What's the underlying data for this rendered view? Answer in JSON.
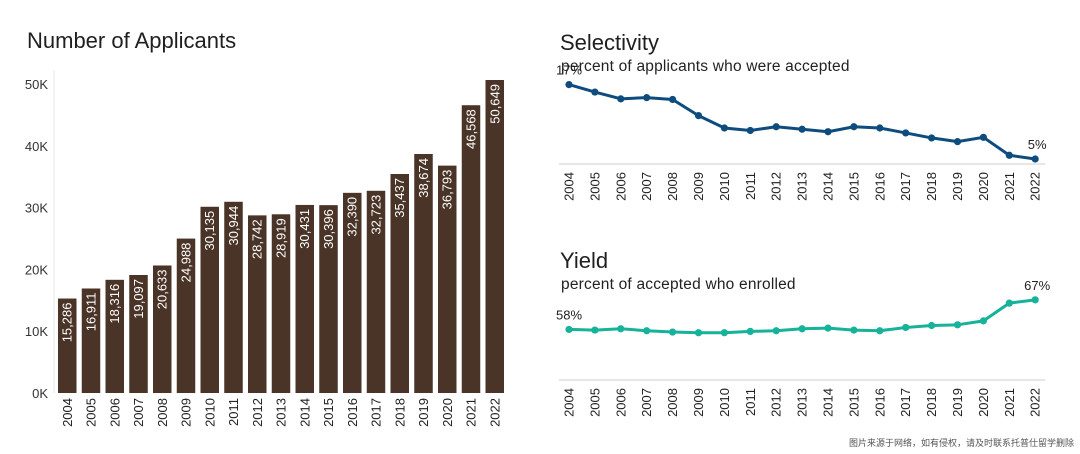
{
  "chart_data": [
    {
      "type": "bar",
      "title": "Number of Applicants",
      "xlabel": "",
      "ylabel": "",
      "ylim": [
        0,
        50649
      ],
      "yticks": [
        {
          "value": 0,
          "label": "0K"
        },
        {
          "value": 10000,
          "label": "10K"
        },
        {
          "value": 20000,
          "label": "20K"
        },
        {
          "value": 30000,
          "label": "30K"
        },
        {
          "value": 40000,
          "label": "40K"
        },
        {
          "value": 50000,
          "label": "50K"
        }
      ],
      "categories": [
        "2004",
        "2005",
        "2006",
        "2007",
        "2008",
        "2009",
        "2010",
        "2011",
        "2012",
        "2013",
        "2014",
        "2015",
        "2016",
        "2017",
        "2018",
        "2019",
        "2020",
        "2021",
        "2022"
      ],
      "values": [
        15286,
        16911,
        18316,
        19097,
        20633,
        24988,
        30135,
        30944,
        28742,
        28919,
        30431,
        30396,
        32390,
        32723,
        35437,
        38674,
        36793,
        46568,
        50649
      ],
      "data_labels": [
        "15,286",
        "16,911",
        "18,316",
        "19,097",
        "20,633",
        "24,988",
        "30,135",
        "30,944",
        "28,742",
        "28,919",
        "30,431",
        "30,396",
        "32,390",
        "32,723",
        "35,437",
        "38,674",
        "36,793",
        "46,568",
        "50,649"
      ],
      "bar_color": "#4a3427",
      "grid": false
    },
    {
      "type": "line",
      "title": "Selectivity",
      "subtitle": "percent of applicants who were accepted",
      "x": [
        "2004",
        "2005",
        "2006",
        "2007",
        "2008",
        "2009",
        "2010",
        "2011",
        "2012",
        "2013",
        "2014",
        "2015",
        "2016",
        "2017",
        "2018",
        "2019",
        "2020",
        "2021",
        "2022"
      ],
      "values": [
        17,
        15.8,
        14.7,
        14.9,
        14.6,
        12,
        10,
        9.6,
        10.2,
        9.8,
        9.4,
        10.2,
        10,
        9.2,
        8.4,
        7.8,
        8.5,
        5.6,
        5
      ],
      "ylim": [
        0,
        20
      ],
      "annotations": [
        {
          "index": 0,
          "text": "17%"
        },
        {
          "index": 18,
          "text": "5%"
        }
      ],
      "color": "#0f4c7e",
      "grid": false
    },
    {
      "type": "line",
      "title": "Yield",
      "subtitle": "percent of accepted who enrolled",
      "x": [
        "2004",
        "2005",
        "2006",
        "2007",
        "2008",
        "2009",
        "2010",
        "2011",
        "2012",
        "2013",
        "2014",
        "2015",
        "2016",
        "2017",
        "2018",
        "2019",
        "2020",
        "2021",
        "2022"
      ],
      "values": [
        58,
        57.8,
        58.2,
        57.6,
        57.2,
        57,
        57,
        57.4,
        57.6,
        58.2,
        58.4,
        57.8,
        57.6,
        58.6,
        59.2,
        59.4,
        60.6,
        66,
        67
      ],
      "ylim": [
        42,
        70
      ],
      "annotations": [
        {
          "index": 0,
          "text": "58%"
        },
        {
          "index": 18,
          "text": "67%"
        }
      ],
      "color": "#16b29a",
      "grid": false
    }
  ],
  "footnote": "图片来源于网络，如有侵权，请及时联系托普仕留学删除"
}
